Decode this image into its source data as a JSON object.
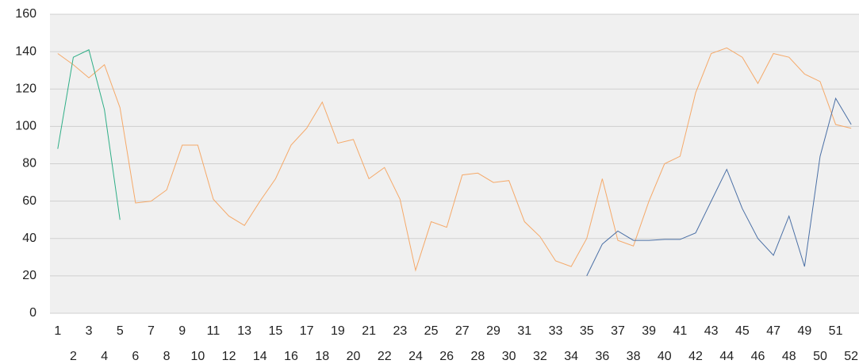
{
  "chart_data": {
    "type": "line",
    "categories": [
      1,
      2,
      3,
      4,
      5,
      6,
      7,
      8,
      9,
      10,
      11,
      12,
      13,
      14,
      15,
      16,
      17,
      18,
      19,
      20,
      21,
      22,
      23,
      24,
      25,
      26,
      27,
      28,
      29,
      30,
      31,
      32,
      33,
      34,
      35,
      36,
      37,
      38,
      39,
      40,
      41,
      42,
      43,
      44,
      45,
      46,
      47,
      48,
      49,
      50,
      51,
      52
    ],
    "series": [
      {
        "color": "#f5a969",
        "values": [
          139,
          133,
          126,
          133,
          110,
          59,
          60,
          66,
          90,
          90,
          61,
          52,
          47,
          60,
          72,
          90,
          99,
          113,
          91,
          93,
          72,
          78,
          61,
          23,
          49,
          46,
          74,
          75,
          70,
          71,
          49,
          41,
          28,
          25,
          40,
          72,
          39,
          36,
          60,
          80,
          84,
          118,
          139,
          142,
          137,
          123,
          139,
          137,
          128,
          124,
          101,
          99
        ]
      },
      {
        "color": "#4a6fa5",
        "values": [
          null,
          null,
          null,
          null,
          null,
          null,
          null,
          null,
          null,
          null,
          null,
          null,
          null,
          null,
          null,
          null,
          null,
          null,
          null,
          null,
          null,
          null,
          null,
          null,
          null,
          null,
          null,
          null,
          null,
          null,
          null,
          null,
          null,
          null,
          20,
          37,
          44,
          39,
          39,
          39.5,
          39.5,
          43,
          60,
          77,
          56,
          40,
          31,
          52,
          25,
          84,
          115,
          101
        ]
      },
      {
        "color": "#2eae86",
        "values": [
          88,
          137,
          141,
          109,
          50,
          null,
          null,
          null,
          null,
          null,
          null,
          null,
          null,
          null,
          null,
          null,
          null,
          null,
          null,
          null,
          null,
          null,
          null,
          null,
          null,
          null,
          null,
          null,
          null,
          null,
          null,
          null,
          null,
          null,
          null,
          null,
          null,
          null,
          null,
          null,
          null,
          null,
          null,
          null,
          null,
          null,
          null,
          null,
          null,
          null,
          null,
          null
        ]
      }
    ],
    "ylim": [
      0,
      160
    ],
    "yticks": [
      0,
      20,
      40,
      60,
      80,
      100,
      120,
      140,
      160
    ],
    "grid": true
  }
}
